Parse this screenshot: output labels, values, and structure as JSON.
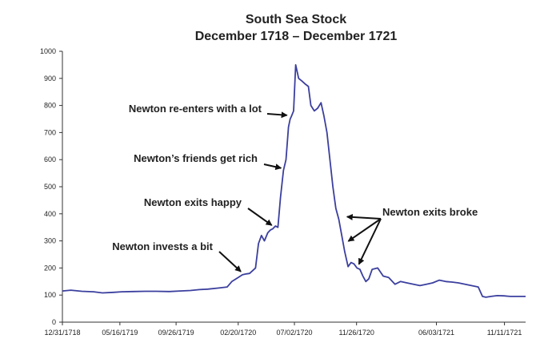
{
  "chart_data": {
    "type": "line",
    "title": "South Sea Stock",
    "subtitle": "December 1718 – December 1721",
    "xlabel": "",
    "ylabel": "",
    "ylim": [
      0,
      1000
    ],
    "yticks": [
      0,
      100,
      200,
      300,
      400,
      500,
      600,
      700,
      800,
      900,
      1000
    ],
    "xlim": [
      "1718-12-31",
      "1721-12-31"
    ],
    "xtick_labels": [
      "12/31/1718",
      "05/16/1719",
      "09/26/1719",
      "02/20/1720",
      "07/02/1720",
      "11/26/1720",
      "06/03/1721",
      "11/11/1721"
    ],
    "xtick_dates": [
      "1718-12-31",
      "1719-05-16",
      "1719-09-26",
      "1720-02-20",
      "1720-07-02",
      "1720-11-26",
      "1721-06-03",
      "1721-11-11"
    ],
    "grid": false,
    "line_color": "#3b3f9e",
    "series": [
      {
        "x": [
          "1718-12-31",
          "1719-01-20",
          "1719-02-15",
          "1719-03-15",
          "1719-04-05",
          "1719-05-01",
          "1719-05-20",
          "1719-06-15",
          "1719-07-15",
          "1719-08-10",
          "1719-09-10",
          "1719-10-05",
          "1719-10-30",
          "1719-11-20",
          "1719-12-10",
          "1720-01-05",
          "1720-01-25",
          "1720-02-05",
          "1720-02-20",
          "1720-03-01",
          "1720-03-10",
          "1720-03-18",
          "1720-03-25",
          "1720-04-01",
          "1720-04-08",
          "1720-04-15",
          "1720-04-22",
          "1720-04-30",
          "1720-05-06",
          "1720-05-12",
          "1720-05-18",
          "1720-05-24",
          "1720-05-30",
          "1720-06-06",
          "1720-06-12",
          "1720-06-18",
          "1720-06-22",
          "1720-06-25",
          "1720-06-30",
          "1720-07-05",
          "1720-07-12",
          "1720-07-20",
          "1720-07-27",
          "1720-08-04",
          "1720-08-10",
          "1720-08-18",
          "1720-08-26",
          "1720-09-03",
          "1720-09-10",
          "1720-09-17",
          "1720-09-24",
          "1720-10-01",
          "1720-10-08",
          "1720-10-15",
          "1720-10-22",
          "1720-10-29",
          "1720-11-06",
          "1720-11-13",
          "1720-11-20",
          "1720-11-27",
          "1720-12-04",
          "1720-12-11",
          "1720-12-18",
          "1720-12-25",
          "1721-01-02",
          "1721-01-15",
          "1721-01-28",
          "1721-02-10",
          "1721-02-25",
          "1721-03-10",
          "1721-03-25",
          "1721-04-10",
          "1721-04-25",
          "1721-05-10",
          "1721-05-25",
          "1721-06-10",
          "1721-06-25",
          "1721-07-10",
          "1721-07-25",
          "1721-08-10",
          "1721-08-25",
          "1721-09-10",
          "1721-09-20",
          "1721-09-28",
          "1721-10-10",
          "1721-10-25",
          "1721-11-10",
          "1721-11-25",
          "1721-12-10",
          "1721-12-31"
        ],
        "y": [
          115,
          118,
          114,
          112,
          108,
          110,
          112,
          113,
          114,
          114,
          113,
          115,
          117,
          120,
          122,
          126,
          130,
          150,
          165,
          175,
          178,
          180,
          190,
          200,
          290,
          320,
          300,
          330,
          340,
          345,
          355,
          350,
          460,
          560,
          600,
          720,
          750,
          760,
          780,
          950,
          900,
          890,
          880,
          870,
          800,
          780,
          790,
          810,
          760,
          700,
          600,
          500,
          420,
          380,
          320,
          260,
          205,
          220,
          215,
          200,
          195,
          170,
          150,
          160,
          195,
          200,
          170,
          165,
          140,
          150,
          145,
          140,
          135,
          140,
          145,
          155,
          150,
          148,
          145,
          140,
          135,
          130,
          95,
          92,
          95,
          98,
          97,
          95,
          95,
          95
        ]
      }
    ],
    "annotations": [
      {
        "text": "Newton invests a bit",
        "x": "1720-03-01",
        "y": 175
      },
      {
        "text": "Newton exits happy",
        "x": "1720-05-15",
        "y": 352
      },
      {
        "text": "Newton’s friends get rich",
        "x": "1720-06-06",
        "y": 560
      },
      {
        "text": "Newton re-enters with a lot",
        "x": "1720-06-20",
        "y": 755
      },
      {
        "text": "Newton exits broke",
        "targets": [
          [
            "1720-10-27",
            380
          ],
          [
            "1720-10-30",
            290
          ],
          [
            "1720-11-24",
            205
          ]
        ]
      }
    ]
  }
}
